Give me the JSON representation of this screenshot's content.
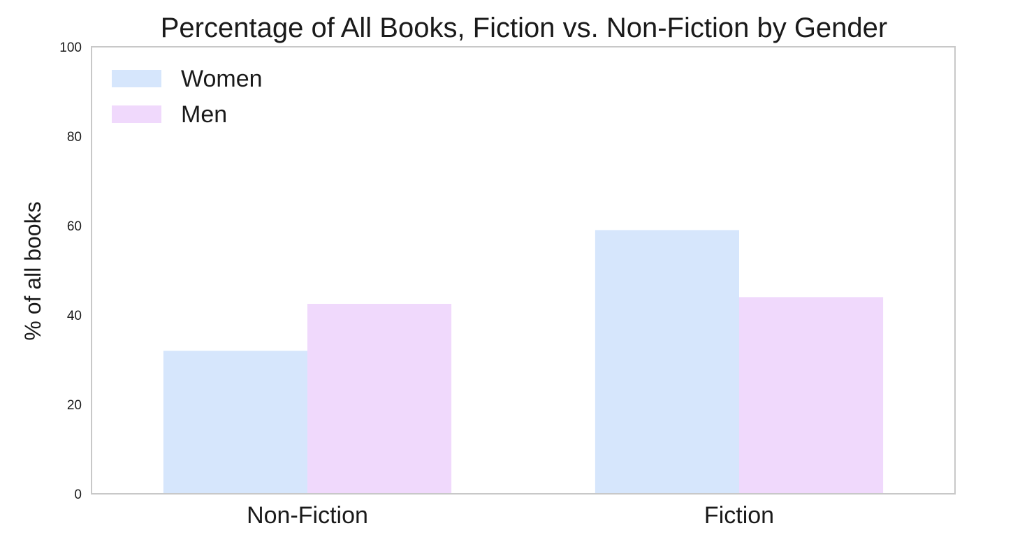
{
  "chart_data": {
    "type": "bar",
    "title": "Percentage of All Books, Fiction vs. Non-Fiction by Gender",
    "xlabel": "",
    "ylabel": "% of all books",
    "categories": [
      "Non-Fiction",
      "Fiction"
    ],
    "series": [
      {
        "name": "Women",
        "values": [
          32,
          59
        ],
        "color": "#d6e6fc"
      },
      {
        "name": "Men",
        "values": [
          42.5,
          44
        ],
        "color": "#f0d9fc"
      }
    ],
    "ylim": [
      0,
      100
    ],
    "yticks": [
      0,
      20,
      40,
      60,
      80,
      100
    ],
    "grid": false,
    "legend_position": "top-left"
  }
}
